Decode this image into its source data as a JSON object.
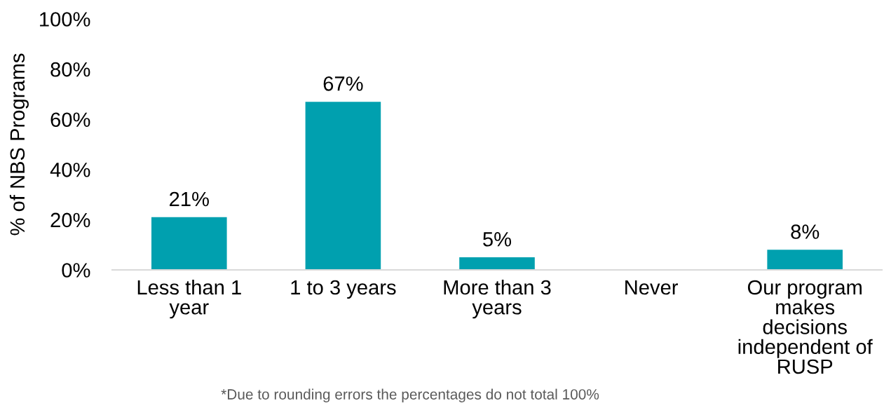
{
  "chart_data": {
    "type": "bar",
    "ylabel": "% of NBS Programs",
    "categories": [
      "Less than 1 year",
      "1 to 3 years",
      "More than 3 years",
      "Never",
      "Our program makes decisions independent of RUSP"
    ],
    "values": [
      21,
      67,
      5,
      0,
      8
    ],
    "color": "#00a0af",
    "value_labels": [
      "21%",
      "67%",
      "5%",
      null,
      "8%"
    ],
    "ylim": [
      0,
      100
    ],
    "yticks": [
      {
        "value": 0,
        "label": "0%"
      },
      {
        "value": 20,
        "label": "20%"
      },
      {
        "value": 40,
        "label": "40%"
      },
      {
        "value": 60,
        "label": "60%"
      },
      {
        "value": 80,
        "label": "80%"
      },
      {
        "value": 100,
        "label": "100%"
      }
    ],
    "annotations": [
      "*Due to rounding errors the percentages do not total 100%"
    ]
  }
}
